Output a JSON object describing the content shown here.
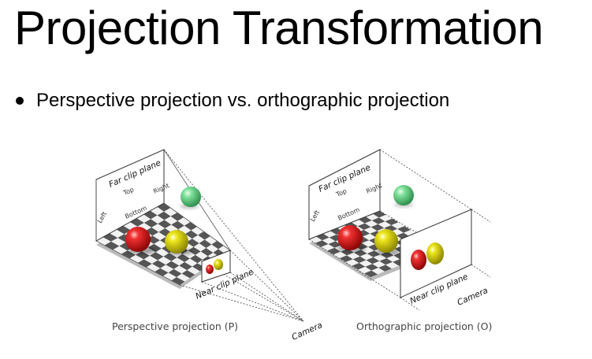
{
  "slide": {
    "title": "Projection Transformation",
    "bullet": "Perspective projection vs. orthographic projection"
  },
  "figure": {
    "perspective": {
      "far_label": "Far clip plane",
      "near_label": "Near clip plane",
      "top": "Top",
      "right": "Right",
      "left": "Left",
      "bottom": "Bottom",
      "camera": "Camera",
      "caption": "Perspective projection (P)"
    },
    "orthographic": {
      "far_label": "Far clip plane",
      "near_label": "Near clip plane",
      "top": "Top",
      "right": "Right",
      "left": "Left",
      "bottom": "Bottom",
      "camera": "Camera",
      "caption": "Orthographic projection (O)"
    },
    "colors": {
      "red_sphere": "#e8141b",
      "yellow_sphere": "#e6e00f",
      "green_sphere": "#5fd17c",
      "checker_dark": "#555555",
      "checker_light": "#f2f2f2"
    }
  }
}
